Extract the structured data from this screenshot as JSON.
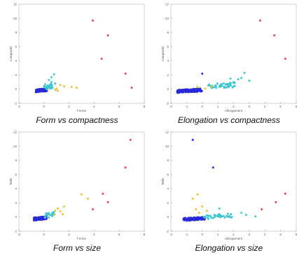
{
  "chart_data": [
    {
      "type": "scatter",
      "caption": "Form vs compactness",
      "xlabel": "Forme",
      "ylabel": "Compacité",
      "xlim": [
        -2,
        8
      ],
      "ylim": [
        -2,
        12
      ],
      "xticks": [
        -2,
        0,
        2,
        4,
        6,
        8
      ],
      "yticks": [
        -2,
        0,
        2,
        4,
        6,
        8,
        10,
        12
      ],
      "grid": false,
      "points": [
        {
          "x": 3.9,
          "y": 9.7,
          "color": "#e8445a"
        },
        {
          "x": 5.1,
          "y": 7.6,
          "color": "#e8445a"
        },
        {
          "x": 4.6,
          "y": 4.3,
          "color": "#e8445a"
        },
        {
          "x": 6.5,
          "y": 2.2,
          "color": "#e8445a"
        },
        {
          "x": 7.0,
          "y": 0.2,
          "color": "#e8445a"
        },
        {
          "x": 1.3,
          "y": 0.6,
          "color": "#e8c23a"
        },
        {
          "x": 1.6,
          "y": 0.4,
          "color": "#e8c23a"
        },
        {
          "x": 2.2,
          "y": 0.3,
          "color": "#e8c23a"
        },
        {
          "x": 2.6,
          "y": 0.2,
          "color": "#e8c23a"
        },
        {
          "x": 1.0,
          "y": 0.1,
          "color": "#e8c23a"
        },
        {
          "x": 0.9,
          "y": -0.1,
          "color": "#e8c23a"
        },
        {
          "x": 1.1,
          "y": -0.2,
          "color": "#e8c23a"
        },
        {
          "x": 0.6,
          "y": 1.7,
          "color": "#3fc6cf"
        },
        {
          "x": 0.8,
          "y": 2.1,
          "color": "#3fc6cf"
        },
        {
          "x": 0.4,
          "y": 1.3,
          "color": "#3fc6cf"
        },
        {
          "x": 0.6,
          "y": 1.0,
          "color": "#3fc6cf"
        },
        {
          "x": 0.9,
          "y": 0.8,
          "color": "#3fc6cf"
        },
        {
          "x": 0.3,
          "y": 0.5,
          "color": "#3fc6cf"
        },
        {
          "x": 0.6,
          "y": 0.3,
          "color": "#3fc6cf"
        },
        {
          "x": 0.2,
          "y": 0.2,
          "color": "#3fc6cf"
        },
        {
          "x": 0.5,
          "y": 0.1,
          "color": "#3fc6cf"
        },
        {
          "x": 0.1,
          "y": 0.7,
          "color": "#3fc6cf"
        }
      ],
      "clusters": [
        {
          "color": "#2a2ad8",
          "center": [
            -0.2,
            -0.15
          ],
          "spread": [
            0.45,
            0.2
          ],
          "count": 150
        },
        {
          "color": "#3fc6cf",
          "center": [
            0.35,
            0.35
          ],
          "spread": [
            0.35,
            0.35
          ],
          "count": 22
        }
      ]
    },
    {
      "type": "scatter",
      "caption": "Elongation vs compactness",
      "xlabel": "Allongement",
      "ylabel": "Compacité",
      "xlim": [
        -2,
        6
      ],
      "ylim": [
        -2,
        12
      ],
      "xticks": [
        -2,
        -1,
        0,
        1,
        2,
        3,
        4,
        5,
        6
      ],
      "yticks": [
        -2,
        0,
        2,
        4,
        6,
        8,
        10,
        12
      ],
      "grid": false,
      "points": [
        {
          "x": 3.7,
          "y": 9.7,
          "color": "#e8445a"
        },
        {
          "x": 4.6,
          "y": 7.6,
          "color": "#e8445a"
        },
        {
          "x": 5.3,
          "y": 4.3,
          "color": "#e8445a"
        },
        {
          "x": 0.0,
          "y": 2.2,
          "color": "#2a2ad8"
        },
        {
          "x": 3.0,
          "y": 1.2,
          "color": "#3fc6cf"
        },
        {
          "x": 2.7,
          "y": 2.3,
          "color": "#3fc6cf"
        },
        {
          "x": 2.3,
          "y": 1.4,
          "color": "#3fc6cf"
        },
        {
          "x": 2.0,
          "y": 1.0,
          "color": "#3fc6cf"
        },
        {
          "x": 2.5,
          "y": 1.6,
          "color": "#3fc6cf"
        },
        {
          "x": 1.8,
          "y": 1.5,
          "color": "#3fc6cf"
        },
        {
          "x": 1.5,
          "y": 0.7,
          "color": "#3fc6cf"
        },
        {
          "x": 0.6,
          "y": 0.4,
          "color": "#e8c23a"
        },
        {
          "x": -0.3,
          "y": 0.3,
          "color": "#e8c23a"
        },
        {
          "x": 0.2,
          "y": 0.1,
          "color": "#e8c23a"
        }
      ],
      "clusters": [
        {
          "color": "#2a2ad8",
          "center": [
            -0.8,
            -0.2
          ],
          "spread": [
            0.8,
            0.22
          ],
          "count": 150
        },
        {
          "color": "#3fc6cf",
          "center": [
            1.2,
            0.5
          ],
          "spread": [
            0.9,
            0.35
          ],
          "count": 45
        }
      ]
    },
    {
      "type": "scatter",
      "caption": "Form vs size",
      "xlabel": "Forme",
      "ylabel": "Taille",
      "xlim": [
        -2,
        8
      ],
      "ylim": [
        -2,
        12
      ],
      "xticks": [
        -2,
        0,
        2,
        4,
        6,
        8
      ],
      "yticks": [
        -2,
        0,
        2,
        4,
        6,
        8,
        10,
        12
      ],
      "grid": false,
      "points": [
        {
          "x": 6.9,
          "y": 10.9,
          "color": "#e8445a"
        },
        {
          "x": 6.5,
          "y": 7.0,
          "color": "#e8445a"
        },
        {
          "x": 4.7,
          "y": 3.3,
          "color": "#e8445a"
        },
        {
          "x": 5.1,
          "y": 2.1,
          "color": "#e8445a"
        },
        {
          "x": 3.9,
          "y": 1.1,
          "color": "#e8445a"
        },
        {
          "x": 3.0,
          "y": 3.2,
          "color": "#e8c23a"
        },
        {
          "x": 3.5,
          "y": 2.6,
          "color": "#e8c23a"
        },
        {
          "x": 1.6,
          "y": 1.5,
          "color": "#e8c23a"
        },
        {
          "x": 1.1,
          "y": 1.2,
          "color": "#e8c23a"
        },
        {
          "x": 1.3,
          "y": 0.8,
          "color": "#e8c23a"
        },
        {
          "x": 0.9,
          "y": 0.9,
          "color": "#e8c23a"
        },
        {
          "x": 1.5,
          "y": 0.4,
          "color": "#e8c23a"
        },
        {
          "x": 0.8,
          "y": 0.3,
          "color": "#e8c23a"
        }
      ],
      "clusters": [
        {
          "color": "#2a2ad8",
          "center": [
            -0.3,
            -0.2
          ],
          "spread": [
            0.5,
            0.22
          ],
          "count": 150
        },
        {
          "color": "#3fc6cf",
          "center": [
            0.5,
            0.3
          ],
          "spread": [
            0.45,
            0.35
          ],
          "count": 25
        }
      ]
    },
    {
      "type": "scatter",
      "caption": "Elongation vs size",
      "xlabel": "Allongement",
      "ylabel": "Taille",
      "xlim": [
        -2,
        6
      ],
      "ylim": [
        -2,
        12
      ],
      "xticks": [
        -2,
        -1,
        0,
        1,
        2,
        3,
        4,
        5,
        6
      ],
      "yticks": [
        -2,
        0,
        2,
        4,
        6,
        8,
        10,
        12
      ],
      "grid": false,
      "points": [
        {
          "x": -0.6,
          "y": 10.9,
          "color": "#2a2ad8"
        },
        {
          "x": 0.7,
          "y": 7.0,
          "color": "#2a2ad8"
        },
        {
          "x": 5.3,
          "y": 3.3,
          "color": "#e8445a"
        },
        {
          "x": 4.7,
          "y": 2.1,
          "color": "#e8445a"
        },
        {
          "x": 3.8,
          "y": 1.1,
          "color": "#e8445a"
        },
        {
          "x": -0.3,
          "y": 3.2,
          "color": "#e8c23a"
        },
        {
          "x": -0.6,
          "y": 2.6,
          "color": "#e8c23a"
        },
        {
          "x": 0.0,
          "y": 1.5,
          "color": "#e8c23a"
        },
        {
          "x": -0.4,
          "y": 1.1,
          "color": "#e8c23a"
        },
        {
          "x": 0.3,
          "y": 0.9,
          "color": "#e8c23a"
        },
        {
          "x": -0.2,
          "y": 0.6,
          "color": "#e8c23a"
        },
        {
          "x": 1.1,
          "y": 1.2,
          "color": "#3fc6cf"
        },
        {
          "x": 2.8,
          "y": 0.3,
          "color": "#3fc6cf"
        },
        {
          "x": 3.4,
          "y": 0.1,
          "color": "#3fc6cf"
        },
        {
          "x": 2.5,
          "y": 0.6,
          "color": "#3fc6cf"
        }
      ],
      "clusters": [
        {
          "color": "#2a2ad8",
          "center": [
            -0.5,
            -0.25
          ],
          "spread": [
            0.7,
            0.2
          ],
          "count": 150
        },
        {
          "color": "#3fc6cf",
          "center": [
            1.0,
            0.1
          ],
          "spread": [
            0.9,
            0.3
          ],
          "count": 40
        }
      ]
    }
  ]
}
